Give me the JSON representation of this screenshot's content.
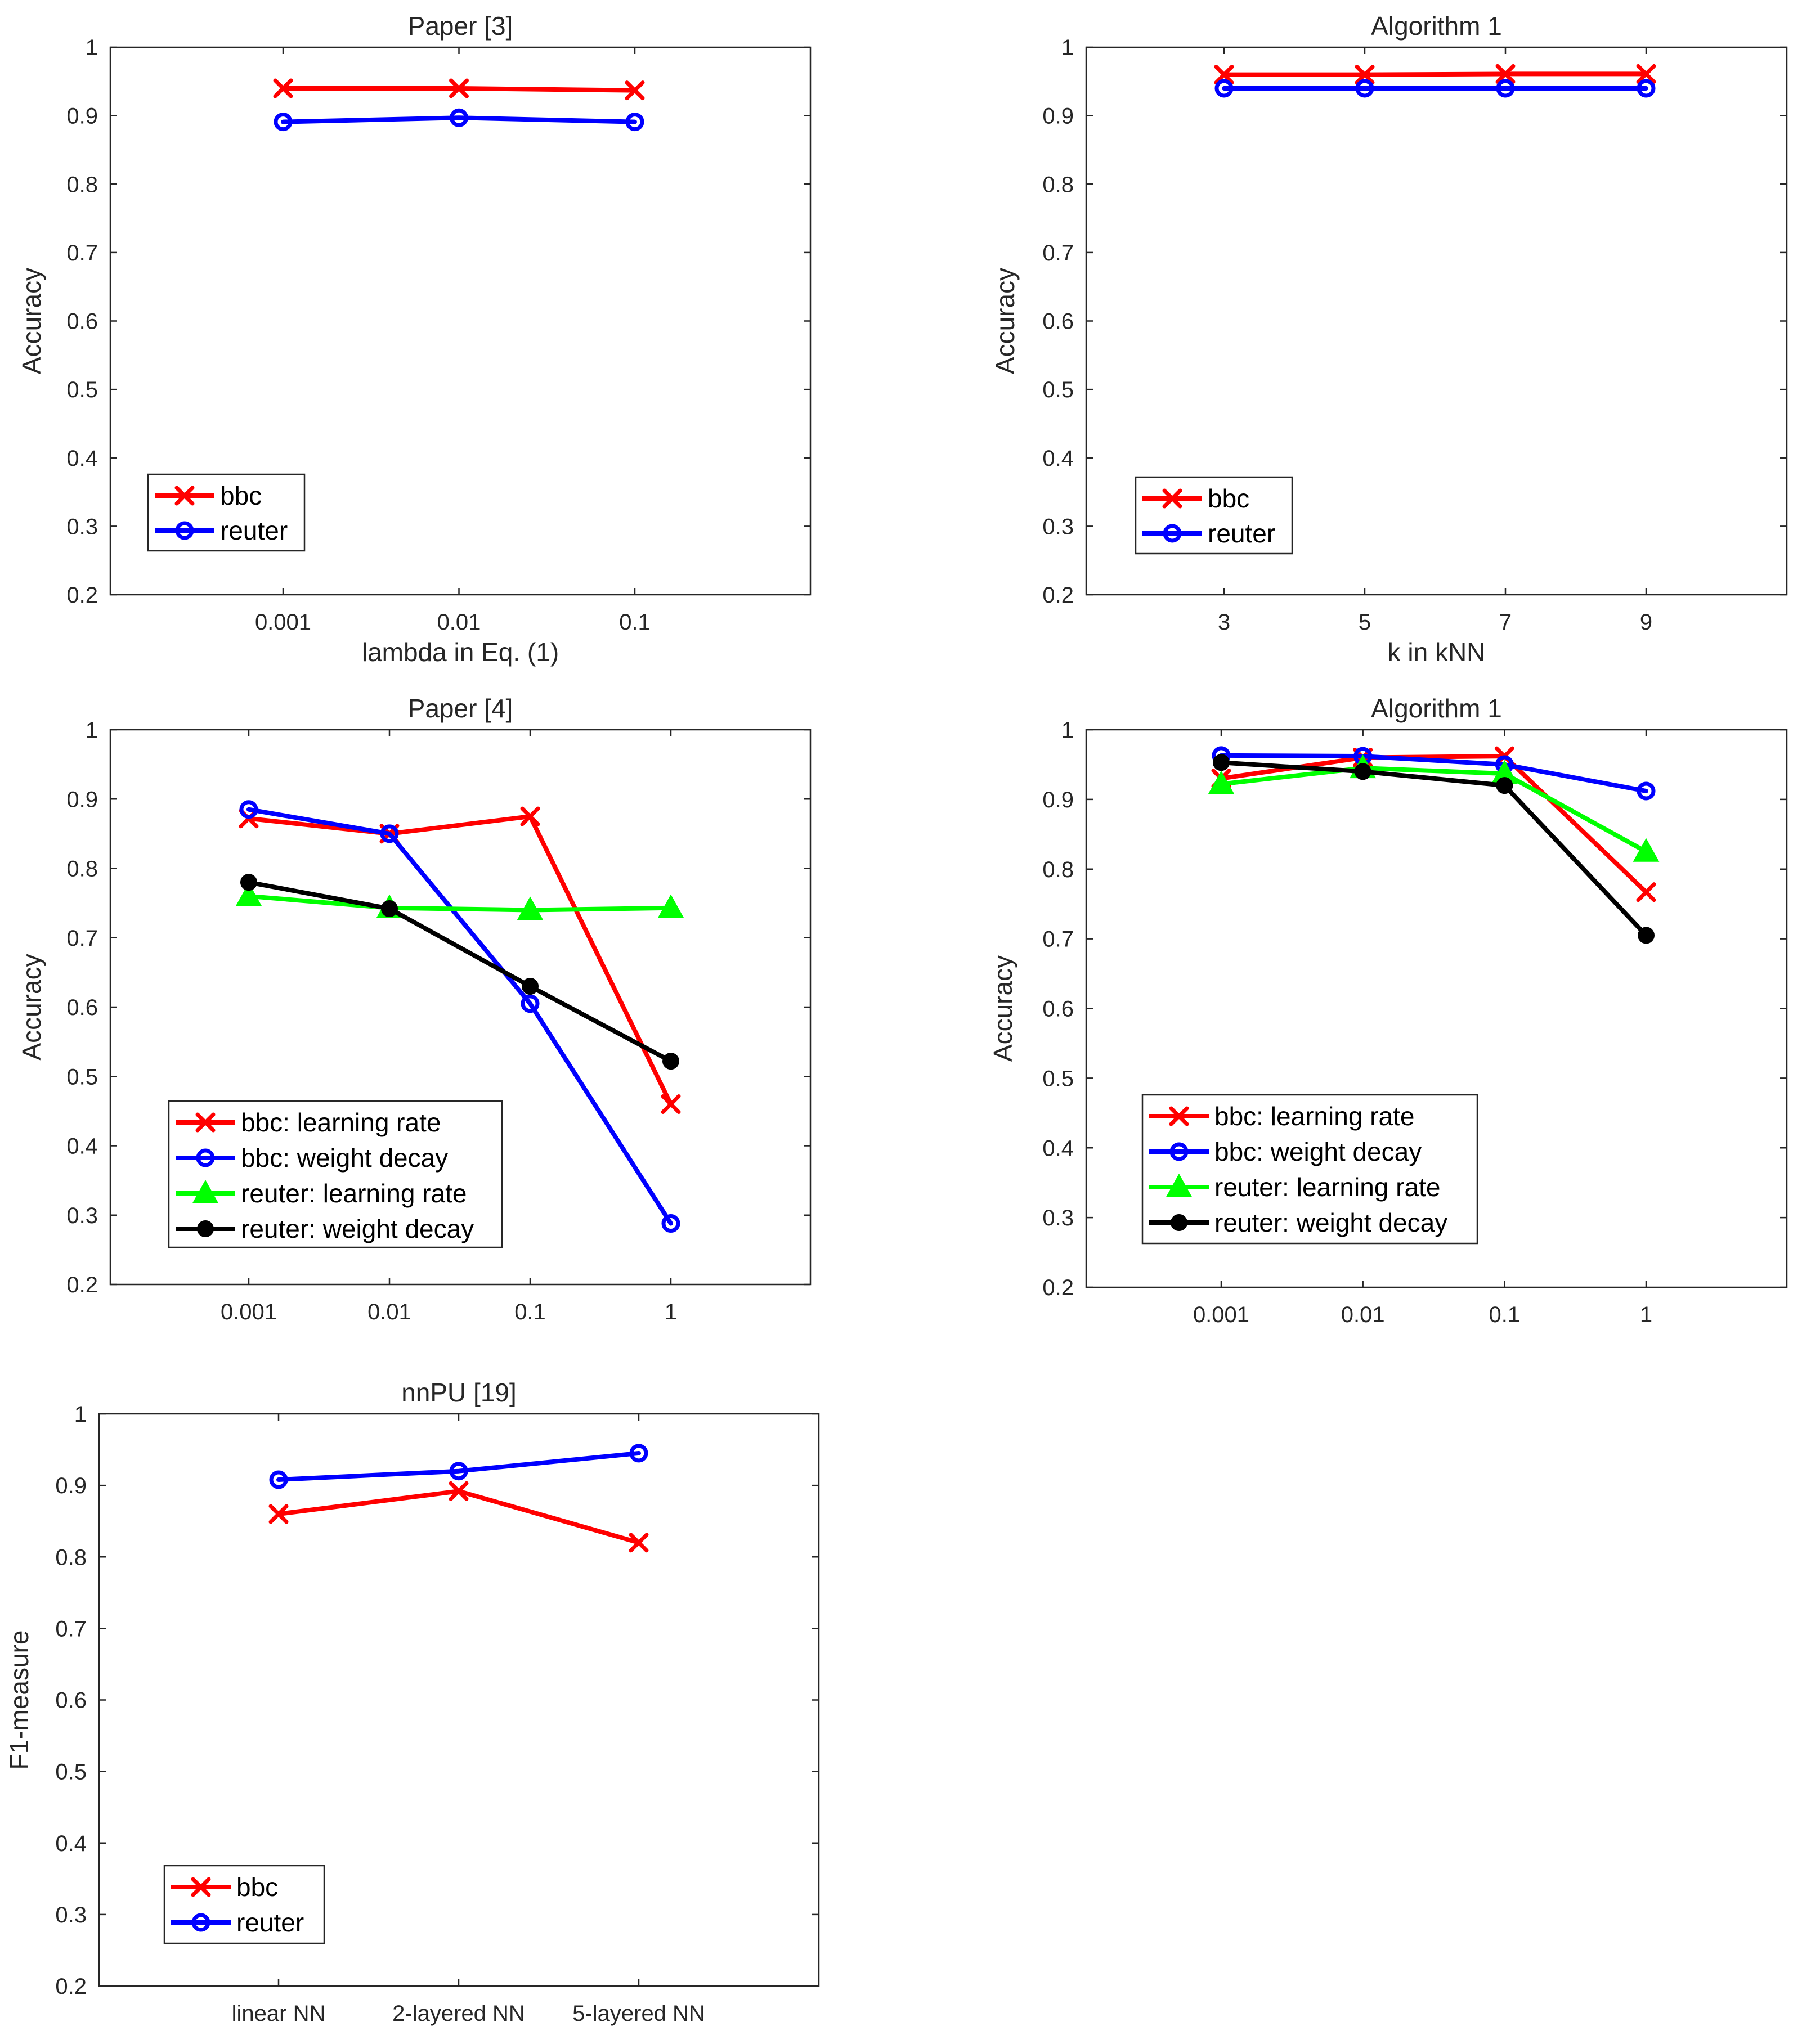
{
  "chart_data": [
    {
      "type": "line",
      "title": "Paper [3]",
      "xlabel": "lambda in Eq. (1)",
      "ylabel": "Accuracy",
      "categories": [
        "0.001",
        "0.01",
        "0.1"
      ],
      "ylim": [
        0.2,
        1
      ],
      "yticks": [
        "0.2",
        "0.3",
        "0.4",
        "0.5",
        "0.6",
        "0.7",
        "0.8",
        "0.9",
        "1"
      ],
      "legend_position": "bottom-left",
      "series": [
        {
          "name": "bbc",
          "color": "#ff0000",
          "marker": "x",
          "values": [
            0.94,
            0.94,
            0.937
          ]
        },
        {
          "name": "reuter",
          "color": "#0000ff",
          "marker": "o",
          "values": [
            0.891,
            0.897,
            0.891
          ]
        }
      ]
    },
    {
      "type": "line",
      "title": "Algorithm 1",
      "xlabel": "k in kNN",
      "ylabel": "Accuracy",
      "categories": [
        "3",
        "5",
        "7",
        "9"
      ],
      "ylim": [
        0.2,
        1
      ],
      "yticks": [
        "0.2",
        "0.3",
        "0.4",
        "0.5",
        "0.6",
        "0.7",
        "0.8",
        "0.9",
        "1"
      ],
      "legend_position": "bottom-left",
      "series": [
        {
          "name": "bbc",
          "color": "#ff0000",
          "marker": "x",
          "values": [
            0.96,
            0.96,
            0.961,
            0.961
          ]
        },
        {
          "name": "reuter",
          "color": "#0000ff",
          "marker": "o",
          "values": [
            0.94,
            0.94,
            0.94,
            0.94
          ]
        }
      ]
    },
    {
      "type": "line",
      "title": "Paper [4]",
      "xlabel": "",
      "ylabel": "Accuracy",
      "categories": [
        "0.001",
        "0.01",
        "0.1",
        "1"
      ],
      "ylim": [
        0.2,
        1
      ],
      "yticks": [
        "0.2",
        "0.3",
        "0.4",
        "0.5",
        "0.6",
        "0.7",
        "0.8",
        "0.9",
        "1"
      ],
      "legend_position": "bottom-left",
      "series": [
        {
          "name": "bbc: learning rate",
          "color": "#ff0000",
          "marker": "x",
          "values": [
            0.872,
            0.85,
            0.875,
            0.46
          ]
        },
        {
          "name": "bbc: weight decay",
          "color": "#0000ff",
          "marker": "o",
          "values": [
            0.885,
            0.85,
            0.605,
            0.288
          ]
        },
        {
          "name": "reuter: learning rate",
          "color": "#00ff00",
          "marker": "triangle",
          "values": [
            0.76,
            0.743,
            0.74,
            0.743
          ]
        },
        {
          "name": "reuter: weight decay",
          "color": "#000000",
          "marker": "dot",
          "values": [
            0.78,
            0.742,
            0.63,
            0.522
          ]
        }
      ]
    },
    {
      "type": "line",
      "title": "Algorithm 1",
      "xlabel": "",
      "ylabel": "Accuracy",
      "categories": [
        "0.001",
        "0.01",
        "0.1",
        "1"
      ],
      "ylim": [
        0.2,
        1
      ],
      "yticks": [
        "0.2",
        "0.3",
        "0.4",
        "0.5",
        "0.6",
        "0.7",
        "0.8",
        "0.9",
        "1"
      ],
      "legend_position": "bottom-left",
      "series": [
        {
          "name": "bbc: learning rate",
          "color": "#ff0000",
          "marker": "x",
          "values": [
            0.93,
            0.96,
            0.962,
            0.767
          ]
        },
        {
          "name": "bbc: weight decay",
          "color": "#0000ff",
          "marker": "o",
          "values": [
            0.963,
            0.962,
            0.95,
            0.912
          ]
        },
        {
          "name": "reuter: learning rate",
          "color": "#00ff00",
          "marker": "triangle",
          "values": [
            0.922,
            0.945,
            0.937,
            0.825
          ]
        },
        {
          "name": "reuter: weight decay",
          "color": "#000000",
          "marker": "dot",
          "values": [
            0.953,
            0.94,
            0.92,
            0.705
          ]
        }
      ]
    },
    {
      "type": "line",
      "title": "nnPU [19]",
      "xlabel": "",
      "ylabel": "F1-measure",
      "categories": [
        "linear NN",
        "2-layered NN",
        "5-layered NN"
      ],
      "ylim": [
        0.2,
        1
      ],
      "yticks": [
        "0.2",
        "0.3",
        "0.4",
        "0.5",
        "0.6",
        "0.7",
        "0.8",
        "0.9",
        "1"
      ],
      "legend_position": "bottom-left",
      "series": [
        {
          "name": "bbc",
          "color": "#ff0000",
          "marker": "x",
          "values": [
            0.86,
            0.892,
            0.82
          ]
        },
        {
          "name": "reuter",
          "color": "#0000ff",
          "marker": "o",
          "values": [
            0.908,
            0.92,
            0.945
          ]
        }
      ]
    }
  ]
}
